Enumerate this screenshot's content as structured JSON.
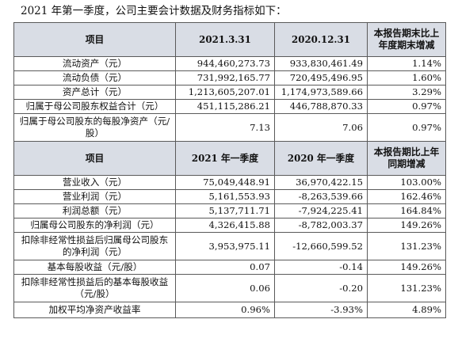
{
  "intro": "2021 年第一季度，公司主要会计数据及财务指标如下：",
  "table1": {
    "header": [
      "项目",
      "2021.3.31",
      "2020.12.31",
      "本报告期末比上年度期末增减"
    ],
    "rows": [
      [
        "流动资产（元）",
        "944,460,273.73",
        "933,830,461.49",
        "1.14%"
      ],
      [
        "流动负债（元）",
        "731,992,165.77",
        "720,495,496.95",
        "1.60%"
      ],
      [
        "资产总计（元）",
        "1,213,605,207.01",
        "1,174,973,589.66",
        "3.29%"
      ],
      [
        "归属于母公司股东权益合计（元）",
        "451,115,286.21",
        "446,788,870.33",
        "0.97%"
      ],
      [
        "归属于母公司股东的每股净资产（元/股）",
        "7.13",
        "7.06",
        "0.97%"
      ]
    ]
  },
  "table2": {
    "header": [
      "项目",
      "2021 年一季度",
      "2020 年一季度",
      "本报告期比上年同期增减"
    ],
    "rows": [
      [
        "营业收入（元）",
        "75,049,448.91",
        "36,970,422.15",
        "103.00%"
      ],
      [
        "营业利润（元）",
        "5,161,553.93",
        "-8,263,539.66",
        "162.46%"
      ],
      [
        "利润总额（元）",
        "5,137,711.71",
        "-7,924,225.41",
        "164.84%"
      ],
      [
        "归属母公司股东的净利润（元）",
        "4,326,415.88",
        "-8,782,003.37",
        "149.26%"
      ],
      [
        "扣除非经常性损益后归属母公司股东的净利润（元）",
        "3,953,975.11",
        "-12,660,599.52",
        "131.23%"
      ],
      [
        "基本每股收益（元/股）",
        "0.07",
        "-0.14",
        "149.26%"
      ],
      [
        "扣除非经常性损益后的基本每股收益（元/股）",
        "0.06",
        "-0.20",
        "131.23%"
      ],
      [
        "加权平均净资产收益率",
        "0.96%",
        "-3.93%",
        "4.89%"
      ]
    ]
  }
}
